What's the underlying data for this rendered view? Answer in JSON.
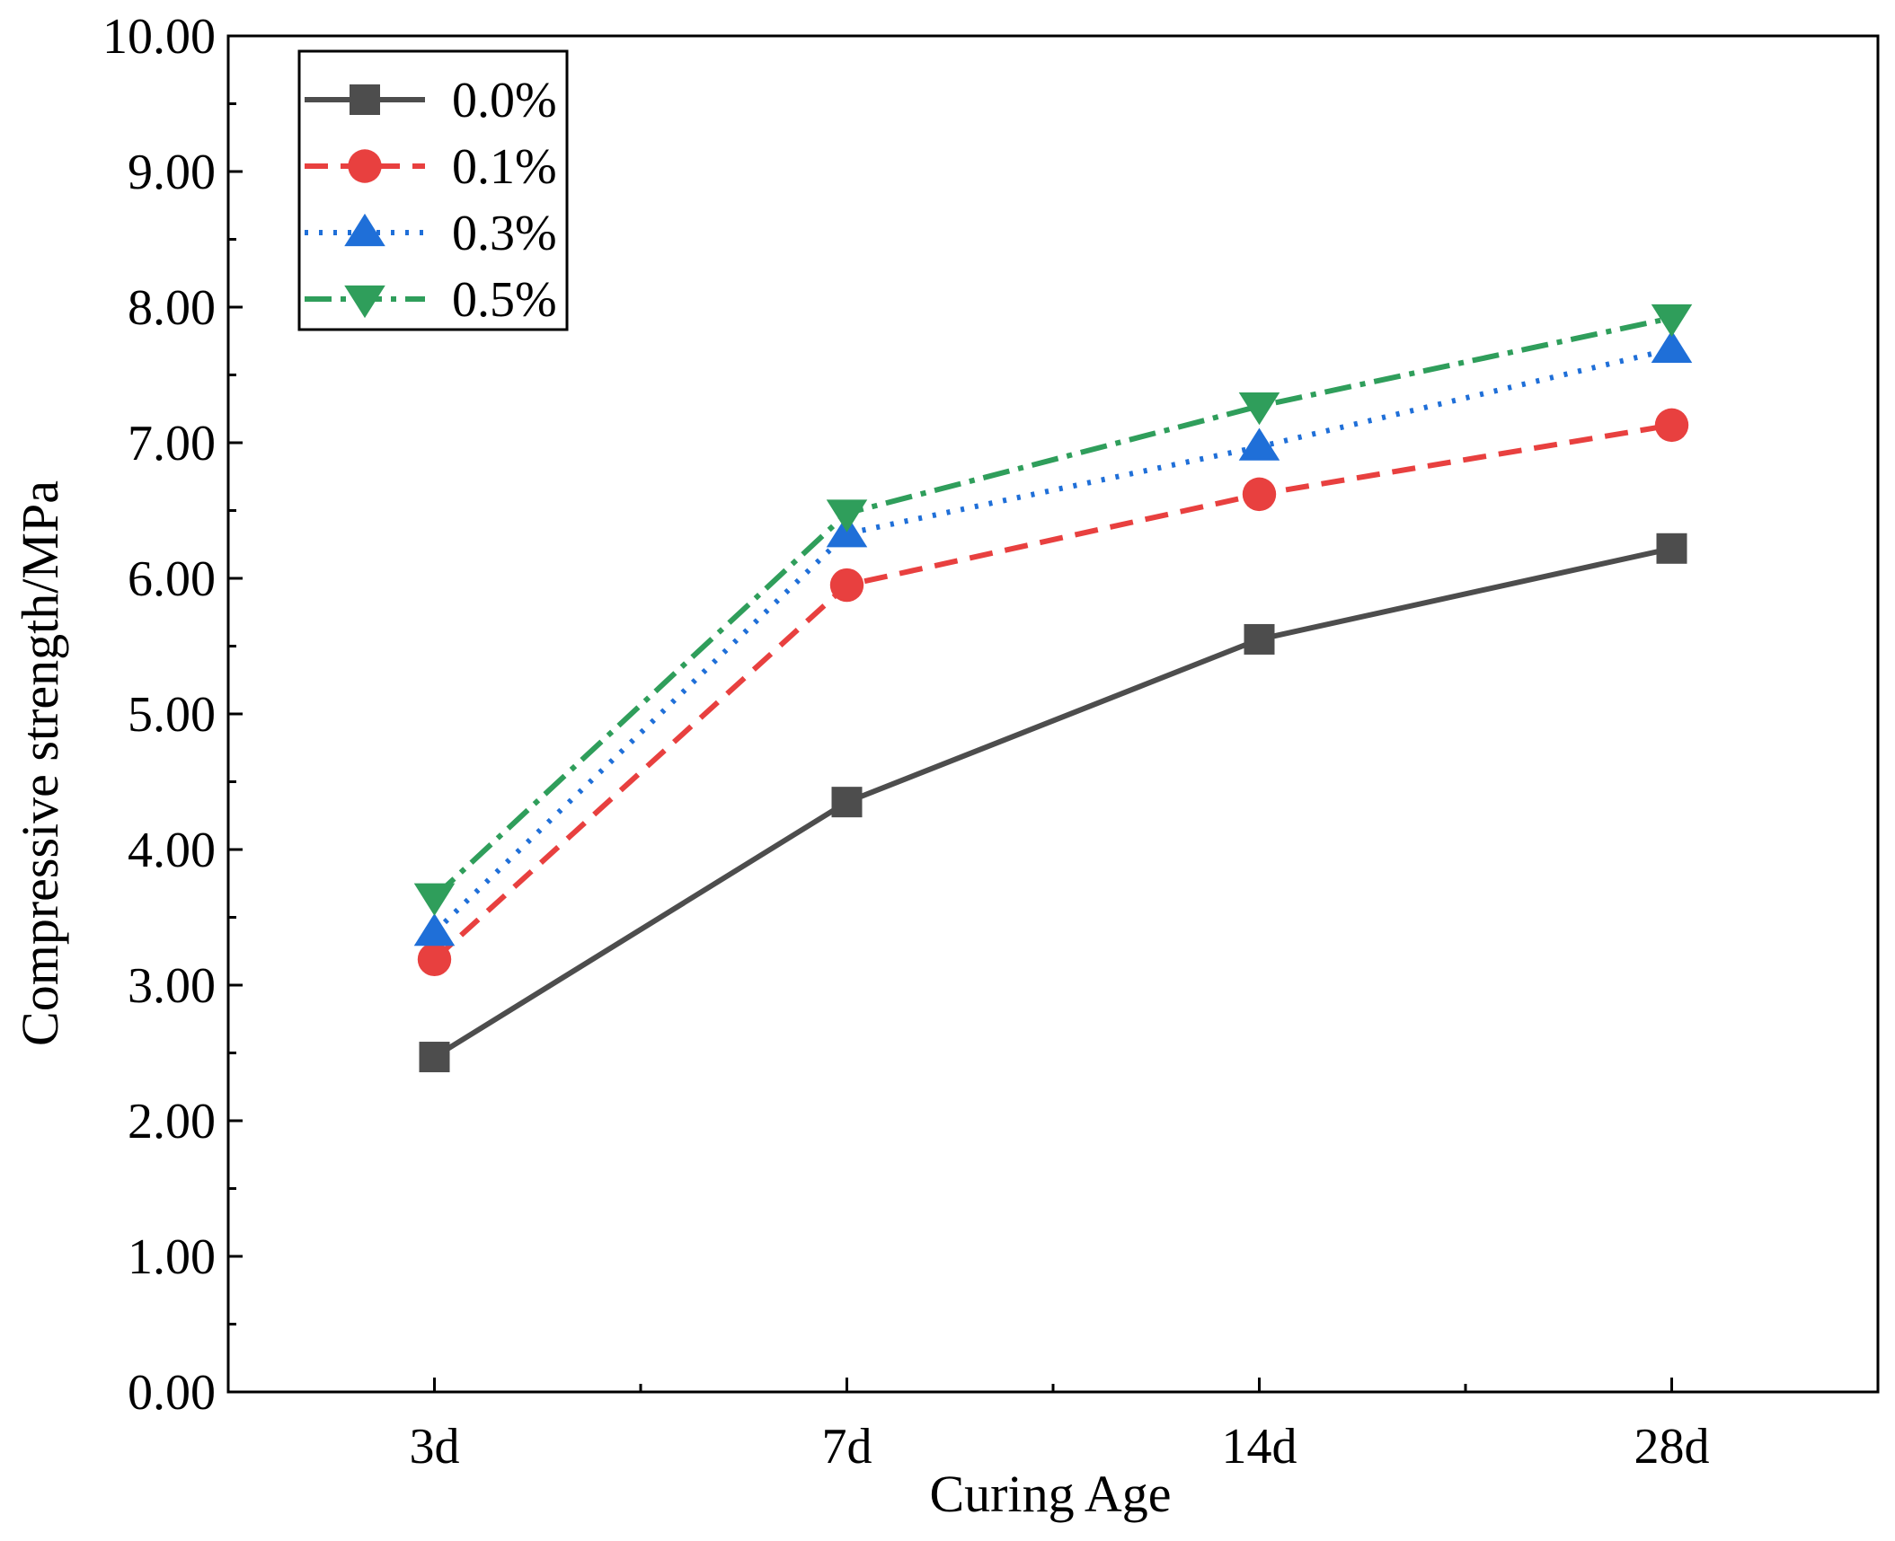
{
  "chart_data": {
    "type": "line",
    "title": "",
    "xlabel": "Curing Age",
    "ylabel": "Compressive strength/MPa",
    "categories": [
      "3d",
      "7d",
      "14d",
      "28d"
    ],
    "ylim": [
      0,
      10
    ],
    "yticks": [
      "0.00",
      "1.00",
      "2.00",
      "3.00",
      "4.00",
      "5.00",
      "6.00",
      "7.00",
      "8.00",
      "9.00",
      "10.00"
    ],
    "grid": false,
    "legend_position": "top-left",
    "series": [
      {
        "name": "0.0%",
        "values": [
          2.47,
          4.35,
          5.55,
          6.22
        ],
        "color": "#4d4d4d",
        "dash": "solid",
        "marker": "square"
      },
      {
        "name": "0.1%",
        "values": [
          3.19,
          5.95,
          6.62,
          7.13
        ],
        "color": "#e8403f",
        "dash": "dashed",
        "marker": "circle"
      },
      {
        "name": "0.3%",
        "values": [
          3.39,
          6.33,
          6.97,
          7.69
        ],
        "color": "#1f6fd8",
        "dash": "dotted",
        "marker": "triangle-up"
      },
      {
        "name": "0.5%",
        "values": [
          3.65,
          6.48,
          7.27,
          7.92
        ],
        "color": "#2f9e5b",
        "dash": "dash-dot",
        "marker": "triangle-down"
      }
    ]
  }
}
